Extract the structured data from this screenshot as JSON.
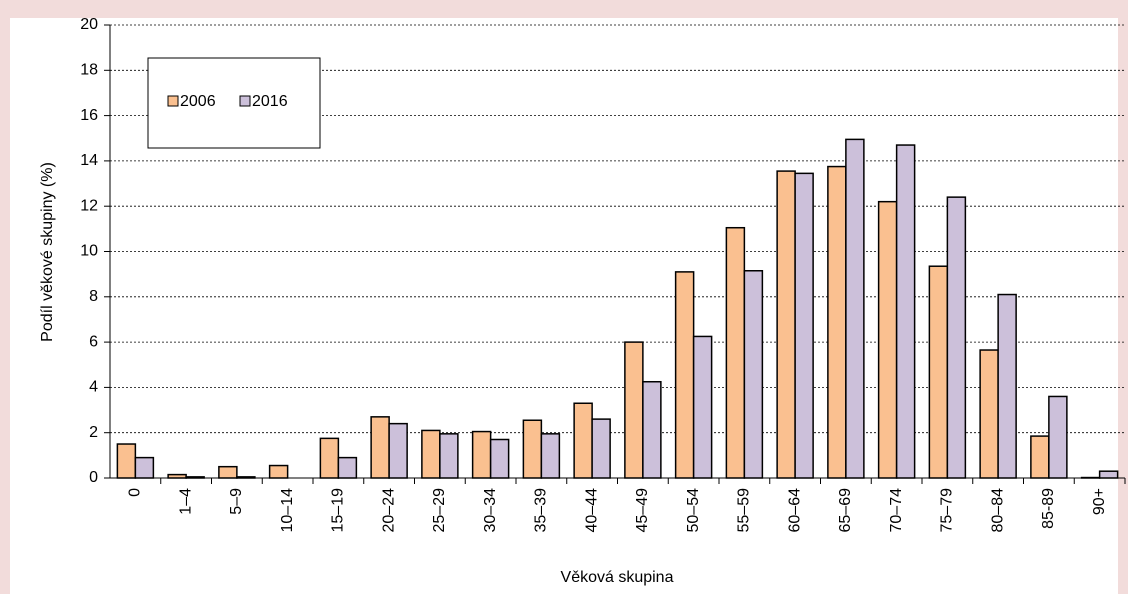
{
  "chart_data": {
    "type": "bar",
    "y_label": "Podíl věkové skupiny (%)",
    "x_label": "Věková skupina",
    "categories": [
      "0",
      "1–4",
      "5–9",
      "10–14",
      "15–19",
      "20–24",
      "25–29",
      "30–34",
      "35–39",
      "40–44",
      "45–49",
      "50–54",
      "55–59",
      "60–64",
      "65–69",
      "70–74",
      "75–79",
      "80–84",
      "85-89",
      "90+"
    ],
    "series": [
      {
        "name": "2006",
        "color": "#fac090",
        "values": [
          1.5,
          0.15,
          0.5,
          0.55,
          1.75,
          2.7,
          2.1,
          2.05,
          2.55,
          3.3,
          6.0,
          9.1,
          11.05,
          13.55,
          13.75,
          12.2,
          9.35,
          5.65,
          1.85,
          0.02
        ]
      },
      {
        "name": "2016",
        "color": "#ccc0da",
        "values": [
          0.9,
          0.05,
          0.05,
          0.0,
          0.9,
          2.4,
          1.95,
          1.7,
          1.95,
          2.6,
          4.25,
          6.25,
          9.15,
          13.45,
          14.95,
          14.7,
          12.4,
          8.1,
          3.6,
          0.3
        ]
      }
    ],
    "ylim": [
      0,
      20
    ],
    "yticks": [
      0,
      2,
      4,
      6,
      8,
      10,
      12,
      14,
      16,
      18,
      20
    ],
    "grid": true,
    "legend": "top-left"
  }
}
